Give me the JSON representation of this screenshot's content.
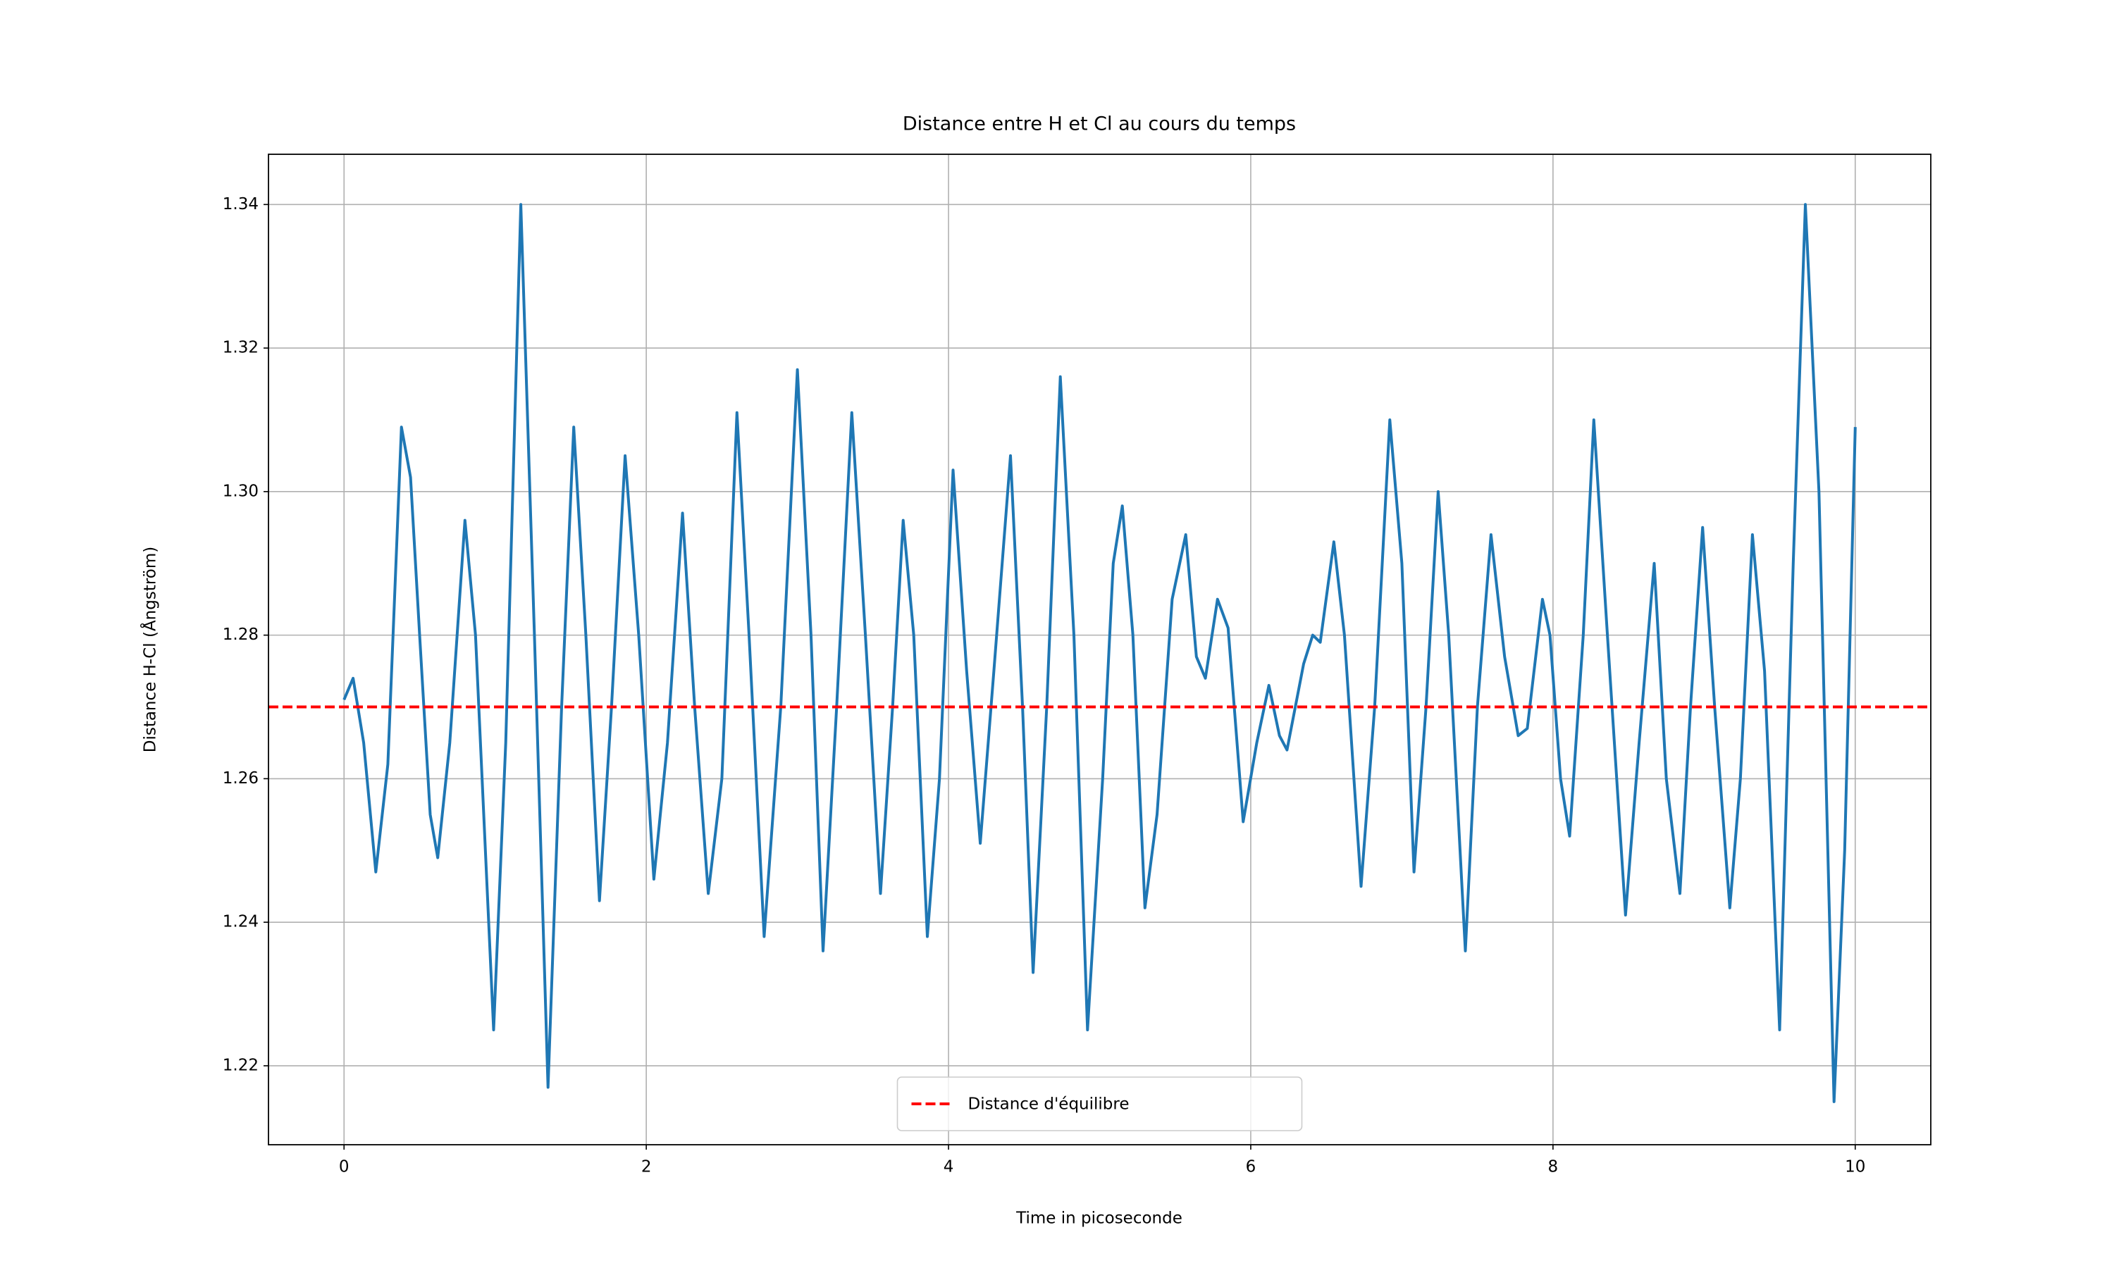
{
  "chart_data": {
    "type": "line",
    "title": "Distance entre H et Cl au cours du temps",
    "x_label": "Time in picoseconde",
    "y_label": "Distance H-Cl (Ångström)",
    "x": [
      0,
      0.06,
      0.13,
      0.21,
      0.29,
      0.38,
      0.44,
      0.5,
      0.57,
      0.62,
      0.7,
      0.8,
      0.87,
      0.99,
      1.07,
      1.17,
      1.26,
      1.35,
      1.44,
      1.52,
      1.6,
      1.69,
      1.77,
      1.86,
      1.95,
      2.05,
      2.14,
      2.24,
      2.32,
      2.41,
      2.5,
      2.6,
      2.68,
      2.78,
      2.89,
      3.0,
      3.09,
      3.17,
      3.26,
      3.36,
      3.45,
      3.55,
      3.63,
      3.7,
      3.77,
      3.86,
      3.94,
      4.03,
      4.12,
      4.21,
      4.3,
      4.41,
      4.49,
      4.56,
      4.65,
      4.74,
      4.83,
      4.92,
      5.02,
      5.09,
      5.15,
      5.22,
      5.3,
      5.38,
      5.48,
      5.57,
      5.64,
      5.7,
      5.78,
      5.85,
      5.95,
      6.04,
      6.12,
      6.19,
      6.24,
      6.35,
      6.41,
      6.46,
      6.55,
      6.62,
      6.73,
      6.82,
      6.92,
      7.0,
      7.08,
      7.16,
      7.24,
      7.31,
      7.42,
      7.5,
      7.59,
      7.68,
      7.77,
      7.83,
      7.93,
      7.98,
      8.05,
      8.11,
      8.2,
      8.27,
      8.36,
      8.48,
      8.57,
      8.67,
      8.75,
      8.84,
      8.91,
      8.99,
      9.07,
      9.17,
      9.24,
      9.32,
      9.4,
      9.5,
      9.59,
      9.67,
      9.76,
      9.86,
      9.93,
      10.0
    ],
    "series": [
      {
        "name": null,
        "color": "#1f77b4",
        "values": [
          1.271,
          1.274,
          1.265,
          1.247,
          1.262,
          1.309,
          1.302,
          1.28,
          1.255,
          1.249,
          1.265,
          1.296,
          1.28,
          1.225,
          1.265,
          1.34,
          1.28,
          1.217,
          1.27,
          1.309,
          1.28,
          1.243,
          1.27,
          1.305,
          1.28,
          1.246,
          1.265,
          1.297,
          1.27,
          1.244,
          1.26,
          1.311,
          1.28,
          1.238,
          1.27,
          1.317,
          1.28,
          1.236,
          1.27,
          1.311,
          1.28,
          1.244,
          1.27,
          1.296,
          1.28,
          1.238,
          1.26,
          1.303,
          1.275,
          1.251,
          1.275,
          1.305,
          1.27,
          1.233,
          1.27,
          1.316,
          1.28,
          1.225,
          1.26,
          1.29,
          1.298,
          1.28,
          1.242,
          1.255,
          1.285,
          1.294,
          1.277,
          1.274,
          1.285,
          1.281,
          1.254,
          1.265,
          1.273,
          1.266,
          1.264,
          1.276,
          1.28,
          1.279,
          1.293,
          1.28,
          1.245,
          1.27,
          1.31,
          1.29,
          1.247,
          1.27,
          1.3,
          1.28,
          1.236,
          1.27,
          1.294,
          1.277,
          1.266,
          1.267,
          1.285,
          1.28,
          1.26,
          1.252,
          1.28,
          1.31,
          1.28,
          1.241,
          1.265,
          1.29,
          1.26,
          1.244,
          1.27,
          1.295,
          1.27,
          1.242,
          1.26,
          1.294,
          1.275,
          1.225,
          1.29,
          1.34,
          1.3,
          1.215,
          1.25,
          1.309
        ]
      }
    ],
    "hline": {
      "y": 1.27,
      "color": "#ff0000",
      "label": "Distance d'équilibre"
    },
    "xlim": [
      -0.5,
      10.5
    ],
    "ylim": [
      1.209,
      1.347
    ],
    "xticks": [
      0,
      2,
      4,
      6,
      8,
      10
    ],
    "yticks": [
      1.22,
      1.24,
      1.26,
      1.28,
      {
        "value": 1.3,
        "label": "1.30"
      },
      1.32,
      1.34
    ],
    "grid": true,
    "legend_position": "lower center"
  }
}
